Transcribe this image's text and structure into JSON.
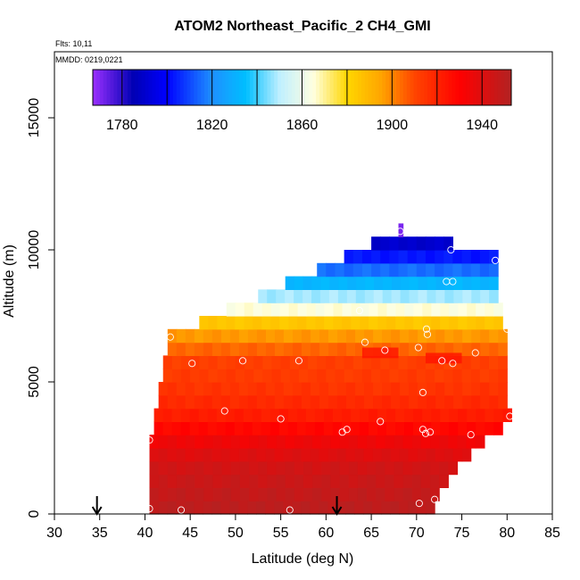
{
  "chart_data": {
    "type": "heatmap",
    "title": "ATOM2 Northeast_Pacific_2 CH4_GMI",
    "flights_label": "Flts: 10,11",
    "dates_label": "MMDD: 0219,0221",
    "xlabel": "Latitude (deg N)",
    "ylabel": "Altitude (m)",
    "xlim": [
      30,
      85
    ],
    "ylim": [
      0,
      17500
    ],
    "x_ticks": [
      "30",
      "35",
      "40",
      "45",
      "50",
      "55",
      "60",
      "65",
      "70",
      "75",
      "80",
      "85"
    ],
    "y_ticks": [
      "0",
      "5000",
      "10000",
      "15000"
    ],
    "colorbar": {
      "range": [
        1767,
        1953
      ],
      "ticks": [
        "1780",
        "1820",
        "1860",
        "1900",
        "1940"
      ],
      "tick_values": [
        1780,
        1820,
        1860,
        1900,
        1940
      ],
      "boundaries": [
        1780,
        1800,
        1820,
        1840,
        1860,
        1880,
        1900,
        1920,
        1940
      ],
      "palette": [
        "#9B30FF",
        "#0000B4",
        "#0000FF",
        "#1E90FF",
        "#00BFFF",
        "#BFEFFF",
        "#FFFFE0",
        "#FFD700",
        "#FFA500",
        "#FF4500",
        "#FF0000",
        "#B22222"
      ],
      "palette_stops": [
        1767,
        1785,
        1800,
        1820,
        1835,
        1850,
        1865,
        1880,
        1895,
        1910,
        1930,
        1953
      ]
    },
    "layers": [
      {
        "alt_min": 0,
        "alt_max": 500,
        "lat_min": 40.5,
        "lat_max": 72,
        "value": 1950
      },
      {
        "alt_min": 500,
        "alt_max": 1000,
        "lat_min": 40.5,
        "lat_max": 72.5,
        "value": 1948
      },
      {
        "alt_min": 1000,
        "alt_max": 1500,
        "lat_min": 40.5,
        "lat_max": 73.5,
        "value": 1946
      },
      {
        "alt_min": 1500,
        "alt_max": 2000,
        "lat_min": 40.5,
        "lat_max": 74.5,
        "value": 1944
      },
      {
        "alt_min": 2000,
        "alt_max": 2500,
        "lat_min": 40.5,
        "lat_max": 76,
        "value": 1940
      },
      {
        "alt_min": 2500,
        "alt_max": 3000,
        "lat_min": 40.5,
        "lat_max": 77.5,
        "value": 1935
      },
      {
        "alt_min": 3000,
        "alt_max": 3500,
        "lat_min": 41,
        "lat_max": 79.5,
        "value": 1928
      },
      {
        "alt_min": 3500,
        "alt_max": 4000,
        "lat_min": 41,
        "lat_max": 80.5,
        "value": 1922
      },
      {
        "alt_min": 4000,
        "alt_max": 4500,
        "lat_min": 41.5,
        "lat_max": 80,
        "value": 1918
      },
      {
        "alt_min": 4500,
        "alt_max": 5000,
        "lat_min": 41.5,
        "lat_max": 80,
        "value": 1915
      },
      {
        "alt_min": 5000,
        "alt_max": 5500,
        "lat_min": 42,
        "lat_max": 80,
        "value": 1913
      },
      {
        "alt_min": 5500,
        "alt_max": 6000,
        "lat_min": 42,
        "lat_max": 80,
        "value": 1912
      },
      {
        "alt_min": 6000,
        "alt_max": 6500,
        "lat_min": 42.5,
        "lat_max": 80,
        "value": 1905
      },
      {
        "alt_min": 6500,
        "alt_max": 7000,
        "lat_min": 42.5,
        "lat_max": 80,
        "value": 1897
      },
      {
        "alt_min": 7000,
        "alt_max": 7500,
        "lat_min": 46,
        "lat_max": 79.5,
        "value": 1885
      },
      {
        "alt_min": 7500,
        "alt_max": 8000,
        "lat_min": 49,
        "lat_max": 79.5,
        "value": 1865
      },
      {
        "alt_min": 8000,
        "alt_max": 8500,
        "lat_min": 52.5,
        "lat_max": 79,
        "value": 1848
      },
      {
        "alt_min": 8500,
        "alt_max": 9000,
        "lat_min": 55.5,
        "lat_max": 79,
        "value": 1832
      },
      {
        "alt_min": 9000,
        "alt_max": 9500,
        "lat_min": 59,
        "lat_max": 79,
        "value": 1815
      },
      {
        "alt_min": 9500,
        "alt_max": 10000,
        "lat_min": 62,
        "lat_max": 79,
        "value": 1803
      },
      {
        "alt_min": 10000,
        "alt_max": 10500,
        "lat_min": 65,
        "lat_max": 74,
        "value": 1790
      },
      {
        "alt_min": 10500,
        "alt_max": 11000,
        "lat_min": 68,
        "lat_max": 68.5,
        "value": 1770
      }
    ],
    "hotspots": [
      {
        "lat_min": 64,
        "lat_max": 68,
        "alt_min": 5900,
        "alt_max": 6300,
        "value": 1925
      },
      {
        "lat_min": 71,
        "lat_max": 75,
        "alt_min": 5700,
        "alt_max": 6100,
        "value": 1925
      }
    ],
    "observations": [
      {
        "lat": 40.5,
        "alt": 200
      },
      {
        "lat": 44,
        "alt": 150
      },
      {
        "lat": 56,
        "alt": 150
      },
      {
        "lat": 70.3,
        "alt": 400
      },
      {
        "lat": 72,
        "alt": 550
      },
      {
        "lat": 40.5,
        "alt": 2800
      },
      {
        "lat": 42.8,
        "alt": 6700
      },
      {
        "lat": 45.2,
        "alt": 5700
      },
      {
        "lat": 50.8,
        "alt": 5800
      },
      {
        "lat": 57,
        "alt": 5800
      },
      {
        "lat": 48.8,
        "alt": 3900
      },
      {
        "lat": 55,
        "alt": 3600
      },
      {
        "lat": 61.8,
        "alt": 3100
      },
      {
        "lat": 62.3,
        "alt": 3200
      },
      {
        "lat": 66,
        "alt": 3500
      },
      {
        "lat": 70.7,
        "alt": 3200
      },
      {
        "lat": 71,
        "alt": 3050
      },
      {
        "lat": 71.5,
        "alt": 3100
      },
      {
        "lat": 76,
        "alt": 3000
      },
      {
        "lat": 80.3,
        "alt": 3700
      },
      {
        "lat": 70.7,
        "alt": 4600
      },
      {
        "lat": 64.3,
        "alt": 6500
      },
      {
        "lat": 66.5,
        "alt": 6200
      },
      {
        "lat": 70.2,
        "alt": 6300
      },
      {
        "lat": 71.2,
        "alt": 6800
      },
      {
        "lat": 71.1,
        "alt": 7000
      },
      {
        "lat": 72.8,
        "alt": 5800
      },
      {
        "lat": 74,
        "alt": 5700
      },
      {
        "lat": 76.5,
        "alt": 6100
      },
      {
        "lat": 80,
        "alt": 7000
      },
      {
        "lat": 63.7,
        "alt": 7700
      },
      {
        "lat": 73.3,
        "alt": 8800
      },
      {
        "lat": 74,
        "alt": 8800
      },
      {
        "lat": 78.7,
        "alt": 9600
      },
      {
        "lat": 73.8,
        "alt": 10000
      },
      {
        "lat": 68.2,
        "alt": 10700
      }
    ],
    "markers": [
      {
        "lat": 34.7,
        "label": "arrow"
      },
      {
        "lat": 61.2,
        "label": "arrow"
      }
    ]
  }
}
